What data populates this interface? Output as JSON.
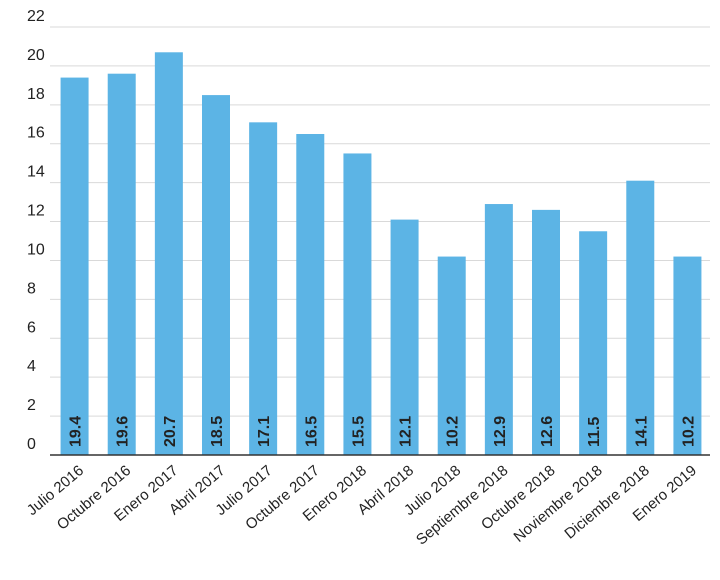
{
  "chart_data": {
    "type": "bar",
    "categories": [
      "Julio 2016",
      "Octubre 2016",
      "Enero 2017",
      "Abril 2017",
      "Julio 2017",
      "Octubre 2017",
      "Enero 2018",
      "Abril 2018",
      "Julio 2018",
      "Septiembre 2018",
      "Octubre 2018",
      "Noviembre 2018",
      "Diciembre 2018",
      "Enero 2019"
    ],
    "values": [
      19.4,
      19.6,
      20.7,
      18.5,
      17.1,
      16.5,
      15.5,
      12.1,
      10.2,
      12.9,
      12.6,
      11.5,
      14.1,
      10.2
    ],
    "data_labels": [
      "19.4",
      "19.6",
      "20.7",
      "18.5",
      "17.1",
      "16.5",
      "15.5",
      "12.1",
      "10.2",
      "12.9",
      "12.6",
      "11.5",
      "14.1",
      "10.2"
    ],
    "yticks": [
      0,
      2,
      4,
      6,
      8,
      10,
      12,
      14,
      16,
      18,
      20,
      22
    ],
    "ylim": [
      0,
      22
    ],
    "grid": true,
    "bar_color": "#5cb4e5",
    "grid_color": "#d9d9d9",
    "axis_color": "#333333",
    "label_color": "#222222"
  }
}
